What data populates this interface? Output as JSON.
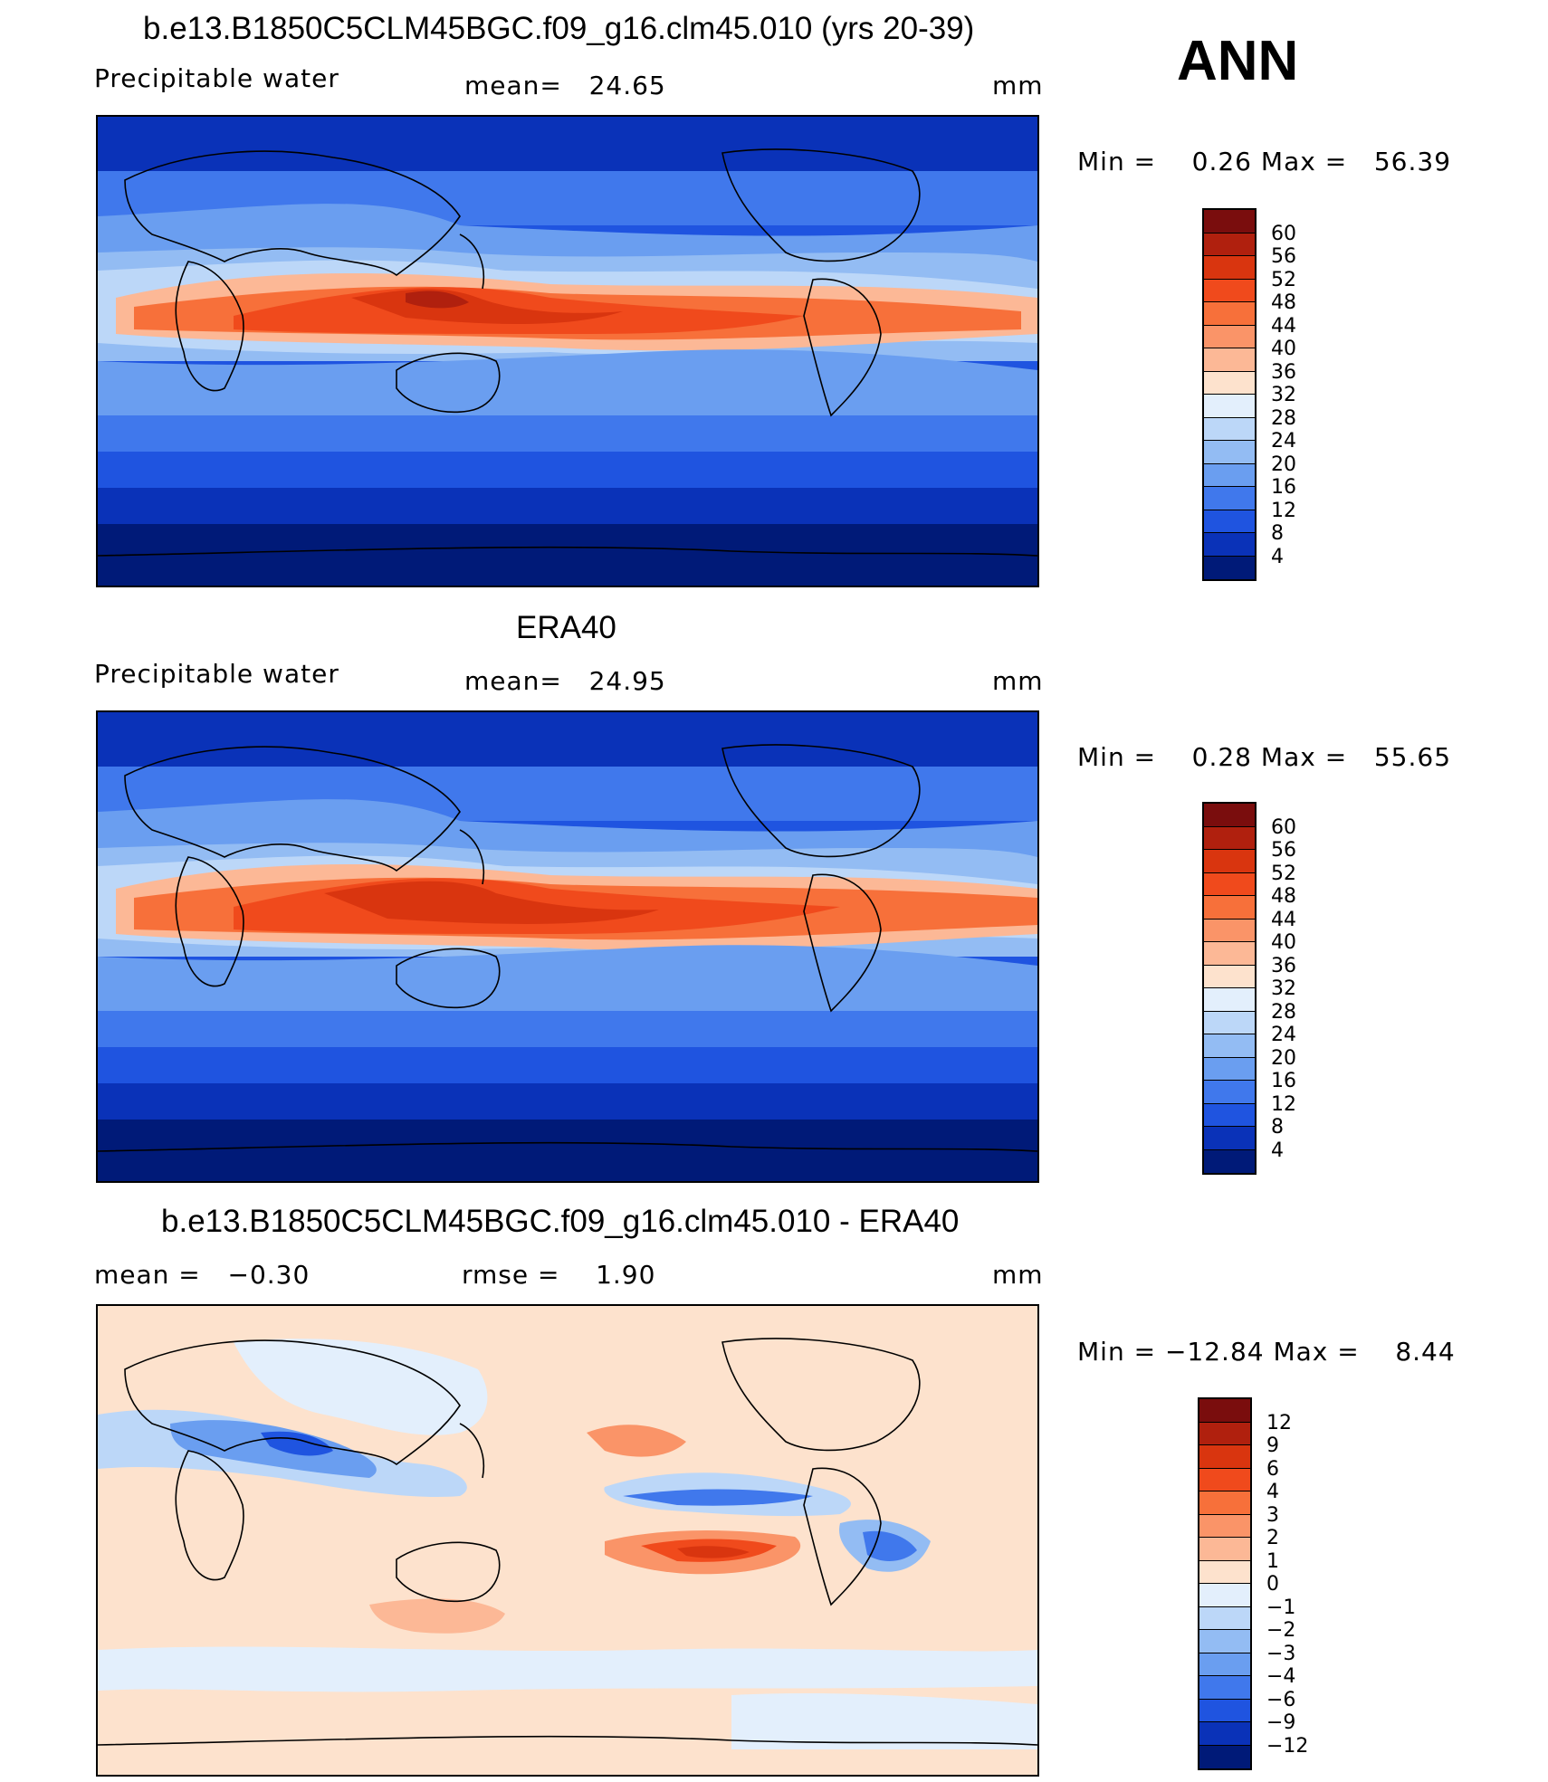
{
  "season": "ANN",
  "panels": [
    {
      "title": "b.e13.B1850C5CLM45BGC.f09_g16.clm45.010 (yrs 20-39)",
      "left_label": "Precipitable water",
      "center_label": "mean=",
      "center_value": "24.65",
      "units": "mm",
      "min_label": "Min =",
      "min_value": "0.26",
      "max_label": "Max =",
      "max_value": "56.39",
      "kind": "field"
    },
    {
      "title": "ERA40",
      "left_label": "Precipitable water",
      "center_label": "mean=",
      "center_value": "24.95",
      "units": "mm",
      "min_label": "Min =",
      "min_value": "0.28",
      "max_label": "Max =",
      "max_value": "55.65",
      "kind": "field"
    },
    {
      "title": "b.e13.B1850C5CLM45BGC.f09_g16.clm45.010 - ERA40",
      "left_label": "mean =",
      "left_value": "−0.30",
      "center_label": "rmse =",
      "center_value": "1.90",
      "units": "mm",
      "min_label": "Min =",
      "min_value": "−12.84",
      "max_label": "Max =",
      "max_value": "8.44",
      "kind": "diff"
    }
  ],
  "colorbars": {
    "field": {
      "labels": [
        "60",
        "56",
        "52",
        "48",
        "44",
        "40",
        "36",
        "32",
        "28",
        "24",
        "20",
        "16",
        "12",
        "8",
        "4"
      ],
      "colors": [
        "#7a0d0d",
        "#b0200e",
        "#d9350f",
        "#f04a1c",
        "#f7703a",
        "#fa9468",
        "#fcb896",
        "#fde2cd",
        "#e3effc",
        "#bcd7f8",
        "#93bcf3",
        "#6a9ef0",
        "#4078ec",
        "#1f54e0",
        "#0a32b8",
        "#001a78"
      ]
    },
    "diff": {
      "labels": [
        "12",
        "9",
        "6",
        "4",
        "3",
        "2",
        "1",
        "0",
        "−1",
        "−2",
        "−3",
        "−4",
        "−6",
        "−9",
        "−12"
      ],
      "colors": [
        "#7a0d0d",
        "#b0200e",
        "#d9350f",
        "#f04a1c",
        "#f7703a",
        "#fa9468",
        "#fcb896",
        "#fde2cd",
        "#e3effc",
        "#bcd7f8",
        "#93bcf3",
        "#6a9ef0",
        "#4078ec",
        "#1f54e0",
        "#0a32b8",
        "#001a78"
      ]
    }
  }
}
